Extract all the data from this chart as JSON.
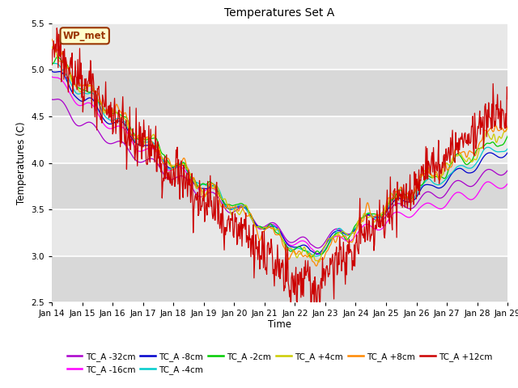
{
  "title": "Temperatures Set A",
  "xlabel": "Time",
  "ylabel": "Temperatures (C)",
  "ylim": [
    2.5,
    5.5
  ],
  "xlim": [
    0,
    360
  ],
  "x_tick_labels": [
    "Jan 14",
    "Jan 15",
    "Jan 16",
    "Jan 17",
    "Jan 18",
    "Jan 19",
    "Jan 20",
    "Jan 21",
    "Jan 22",
    "Jan 23",
    "Jan 24",
    "Jan 25",
    "Jan 26",
    "Jan 27",
    "Jan 28",
    "Jan 29"
  ],
  "x_tick_positions": [
    0,
    24,
    48,
    72,
    96,
    120,
    144,
    168,
    192,
    216,
    240,
    264,
    288,
    312,
    336,
    360
  ],
  "series": [
    {
      "label": "TC_A -32cm",
      "color": "#aa00cc",
      "start": 4.7,
      "min_val": 3.1,
      "end": 3.95,
      "noise": 0.03,
      "smooth": 8
    },
    {
      "label": "TC_A -16cm",
      "color": "#ff00ff",
      "start": 4.95,
      "min_val": 3.05,
      "end": 3.8,
      "noise": 0.04,
      "smooth": 6
    },
    {
      "label": "TC_A -8cm",
      "color": "#0000cc",
      "start": 5.03,
      "min_val": 3.02,
      "end": 4.15,
      "noise": 0.05,
      "smooth": 5
    },
    {
      "label": "TC_A -4cm",
      "color": "#00cccc",
      "start": 5.1,
      "min_val": 3.0,
      "end": 4.2,
      "noise": 0.06,
      "smooth": 4
    },
    {
      "label": "TC_A -2cm",
      "color": "#00cc00",
      "start": 5.18,
      "min_val": 2.98,
      "end": 4.3,
      "noise": 0.07,
      "smooth": 3
    },
    {
      "label": "TC_A +4cm",
      "color": "#cccc00",
      "start": 5.2,
      "min_val": 2.95,
      "end": 4.35,
      "noise": 0.09,
      "smooth": 2
    },
    {
      "label": "TC_A +8cm",
      "color": "#ff8800",
      "start": 5.22,
      "min_val": 2.93,
      "end": 4.4,
      "noise": 0.11,
      "smooth": 2
    },
    {
      "label": "TC_A +12cm",
      "color": "#cc0000",
      "start": 5.3,
      "min_val": 2.6,
      "end": 4.65,
      "noise": 0.14,
      "smooth": 1
    }
  ],
  "background_color": "#e8e8e8",
  "plot_bg_light": "#f0f0f0",
  "wp_met_label": "WP_met",
  "wp_met_bg": "#ffffcc",
  "wp_met_border": "#993300",
  "legend_ncol_row1": 6,
  "legend_ncol_row2": 2
}
